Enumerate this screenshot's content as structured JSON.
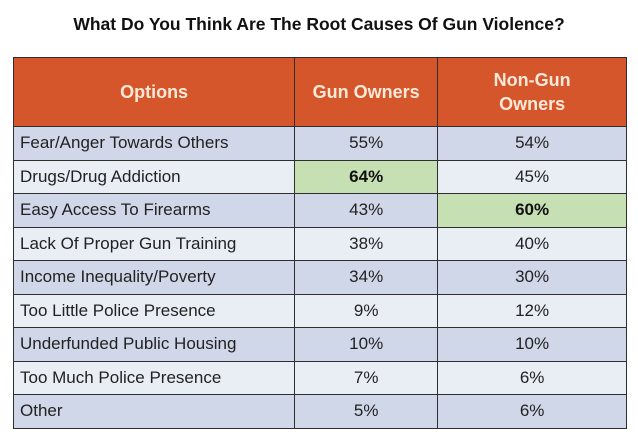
{
  "title": "What Do You Think Are The Root Causes Of Gun Violence?",
  "colors": {
    "header": "#d4562a",
    "row_dark": "#d0d7e8",
    "row_light": "#e9edf4",
    "highlight": "#c6e0b4"
  },
  "chart_data": {
    "type": "table",
    "title": "What Do You Think Are The Root Causes Of Gun Violence?",
    "columns": [
      "Options",
      "Gun Owners",
      "Non-Gun Owners"
    ],
    "rows": [
      {
        "option": "Fear/Anger Towards Others",
        "gun": "55%",
        "nongun": "54%"
      },
      {
        "option": "Drugs/Drug Addiction",
        "gun": "64%",
        "nongun": "45%",
        "highlight": "gun"
      },
      {
        "option": "Easy Access To Firearms",
        "gun": "43%",
        "nongun": "60%",
        "highlight": "nongun"
      },
      {
        "option": "Lack Of Proper Gun Training",
        "gun": "38%",
        "nongun": "40%"
      },
      {
        "option": "Income Inequality/Poverty",
        "gun": "34%",
        "nongun": "30%"
      },
      {
        "option": "Too Little Police Presence",
        "gun": "9%",
        "nongun": "12%"
      },
      {
        "option": "Underfunded  Public Housing",
        "gun": "10%",
        "nongun": "10%"
      },
      {
        "option": "Too Much Police Presence",
        "gun": "7%",
        "nongun": "6%"
      },
      {
        "option": "Other",
        "gun": "5%",
        "nongun": "6%"
      }
    ]
  }
}
